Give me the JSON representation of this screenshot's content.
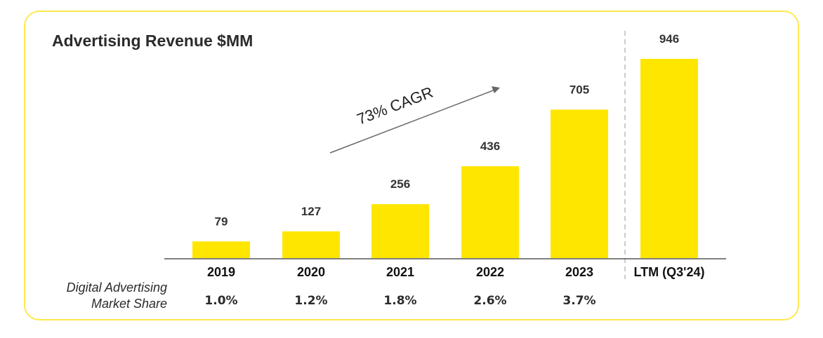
{
  "chart_data": {
    "type": "bar",
    "title": "Advertising Revenue $MM",
    "categories": [
      "2019",
      "2020",
      "2021",
      "2022",
      "2023",
      "LTM (Q3'24)"
    ],
    "values": [
      79,
      127,
      256,
      436,
      705,
      946
    ],
    "value_labels": [
      "79",
      "127",
      "256",
      "436",
      "705",
      "946"
    ],
    "bar_color": "#ffe600",
    "ylim": [
      0,
      1000
    ],
    "xlabel": "",
    "ylabel": "",
    "annotation": "73% CAGR",
    "market_share": {
      "label_line1": "Digital Advertising",
      "label_line2": "Market Share",
      "values": [
        "1.0%",
        "1.2%",
        "1.8%",
        "2.6%",
        "3.7%"
      ]
    }
  }
}
